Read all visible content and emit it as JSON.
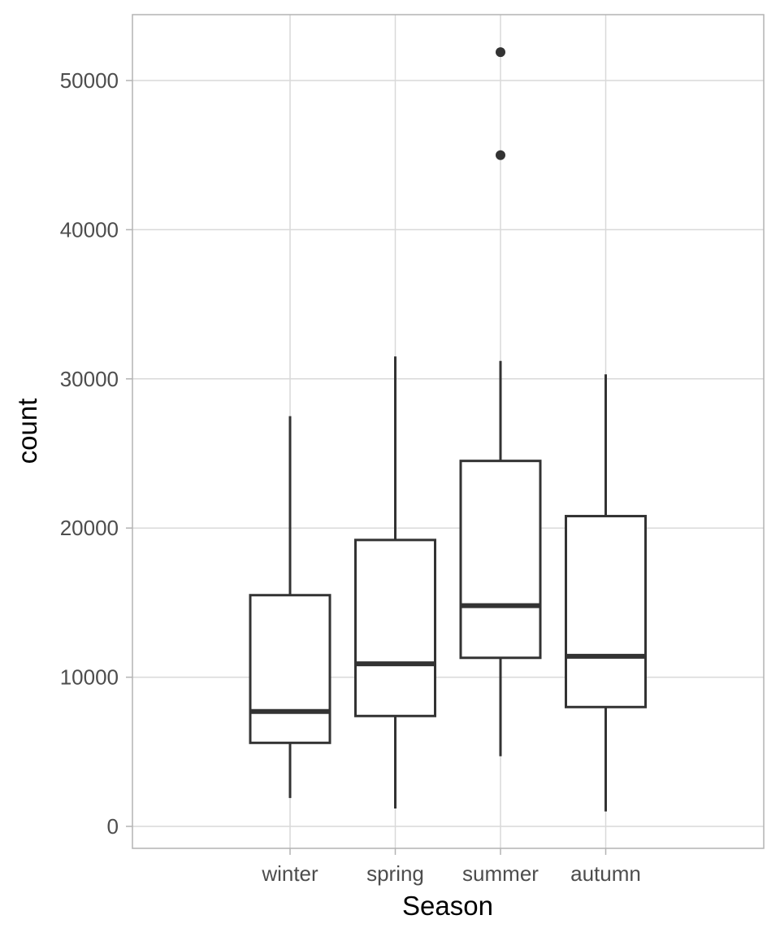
{
  "chart_data": {
    "type": "boxplot",
    "xlabel": "Season",
    "ylabel": "count",
    "ylim": [
      -1500,
      54500
    ],
    "y_ticks": [
      0,
      10000,
      20000,
      30000,
      40000,
      50000
    ],
    "y_tick_labels": [
      "0",
      "10000",
      "20000",
      "30000",
      "40000",
      "50000"
    ],
    "categories": [
      "winter",
      "spring",
      "summer",
      "autumn"
    ],
    "grid": true,
    "colors": {
      "box": "#333333",
      "grid": "#d9d9d9",
      "border": "#b3b3b3"
    },
    "boxes": [
      {
        "category": "winter",
        "whisker_low": 1900,
        "q1": 5600,
        "median": 7700,
        "q3": 15500,
        "whisker_high": 27500,
        "outliers": []
      },
      {
        "category": "spring",
        "whisker_low": 1200,
        "q1": 7400,
        "median": 10900,
        "q3": 19200,
        "whisker_high": 31500,
        "outliers": []
      },
      {
        "category": "summer",
        "whisker_low": 4700,
        "q1": 11300,
        "median": 14800,
        "q3": 24500,
        "whisker_high": 31200,
        "outliers": [
          45000,
          51900
        ]
      },
      {
        "category": "autumn",
        "whisker_low": 1000,
        "q1": 8000,
        "median": 11400,
        "q3": 20800,
        "whisker_high": 30300,
        "outliers": []
      }
    ]
  }
}
